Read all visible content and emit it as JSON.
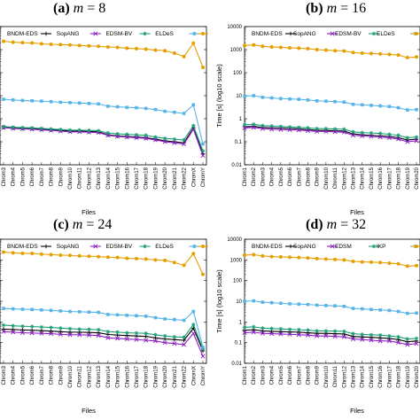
{
  "figure": {
    "ylabel": "Time [s] (log10 scale)",
    "xlabel": "Files"
  },
  "chart_data": [
    {
      "type": "line",
      "panel": "(a)",
      "title_math": "m = 8",
      "title_var": "m",
      "title_val": "= 8",
      "xlabel": "Files",
      "ylabel": "",
      "ylim": [
        0.01,
        10000
      ],
      "yscale": "log",
      "categories": [
        "Chrom3",
        "Chrom4",
        "Chrom5",
        "Chrom6",
        "Chrom7",
        "Chrom8",
        "Chrom9",
        "Chrom10",
        "Chrom11",
        "Chrom12",
        "Chrom13",
        "Chrom14",
        "Chrom15",
        "Chrom16",
        "Chrom17",
        "Chrom18",
        "Chrom19",
        "Chrom20",
        "Chrom21",
        "Chrom22",
        "ChromX",
        "ChromY"
      ],
      "series": [
        {
          "name": "BNDM-EDS",
          "color": "#000000",
          "marker": "plus",
          "values": [
            0.42,
            0.4,
            0.38,
            0.37,
            0.35,
            0.33,
            0.31,
            0.29,
            0.29,
            0.28,
            0.27,
            0.2,
            0.18,
            0.17,
            0.16,
            0.15,
            0.13,
            0.11,
            0.1,
            0.09,
            0.4,
            0.03
          ]
        },
        {
          "name": "SopANG",
          "color": "#8b1fc4",
          "marker": "x",
          "values": [
            0.41,
            0.38,
            0.36,
            0.35,
            0.33,
            0.31,
            0.29,
            0.27,
            0.27,
            0.26,
            0.25,
            0.19,
            0.17,
            0.16,
            0.15,
            0.14,
            0.12,
            0.1,
            0.09,
            0.08,
            0.35,
            0.025
          ]
        },
        {
          "name": "EDSM-BV",
          "color": "#1a9e77",
          "marker": "star",
          "values": [
            0.46,
            0.43,
            0.41,
            0.4,
            0.38,
            0.36,
            0.34,
            0.32,
            0.32,
            0.31,
            0.3,
            0.24,
            0.22,
            0.21,
            0.2,
            0.19,
            0.16,
            0.14,
            0.13,
            0.12,
            0.5,
            0.04
          ]
        },
        {
          "name": "ELDeS",
          "color": "#56b4e9",
          "marker": "square",
          "values": [
            7.0,
            6.5,
            6.2,
            6.0,
            5.8,
            5.5,
            5.2,
            5.0,
            4.8,
            4.6,
            4.4,
            3.5,
            3.3,
            3.1,
            3.0,
            2.8,
            2.5,
            2.1,
            1.9,
            1.7,
            4.0,
            0.08
          ]
        },
        {
          "name": "",
          "color": "#e69f00",
          "marker": "circle",
          "values": [
            2300,
            2100,
            2000,
            1950,
            1800,
            1700,
            1650,
            1600,
            1500,
            1450,
            1400,
            1300,
            1250,
            1150,
            1100,
            1050,
            950,
            900,
            700,
            500,
            1900,
            170
          ]
        }
      ]
    },
    {
      "type": "line",
      "panel": "(b)",
      "title_math": "m = 16",
      "title_var": "m",
      "title_val": "= 16",
      "xlabel": "Files",
      "ylabel": "Time [s] (log10 scale)",
      "ylim": [
        0.01,
        10000
      ],
      "yscale": "log",
      "categories": [
        "Chrom1",
        "Chrom2",
        "Chrom3",
        "Chrom4",
        "Chrom5",
        "Chrom6",
        "Chrom7",
        "Chrom8",
        "Chrom9",
        "Chrom10",
        "Chrom11",
        "Chrom12",
        "Chrom13",
        "Chrom14",
        "Chrom15",
        "Chrom16",
        "Chrom17",
        "Chrom18",
        "Chrom19",
        "Chrom20"
      ],
      "series": [
        {
          "name": "BNDM-EDS",
          "color": "#000000",
          "marker": "plus",
          "values": [
            0.45,
            0.47,
            0.42,
            0.4,
            0.39,
            0.38,
            0.36,
            0.34,
            0.31,
            0.31,
            0.3,
            0.29,
            0.22,
            0.2,
            0.19,
            0.18,
            0.17,
            0.15,
            0.12,
            0.13
          ]
        },
        {
          "name": "SopANG",
          "color": "#8b1fc4",
          "marker": "x",
          "values": [
            0.4,
            0.42,
            0.37,
            0.35,
            0.34,
            0.33,
            0.32,
            0.3,
            0.28,
            0.28,
            0.27,
            0.26,
            0.19,
            0.18,
            0.17,
            0.16,
            0.15,
            0.13,
            0.1,
            0.11
          ]
        },
        {
          "name": "EDSM-BV",
          "color": "#1a9e77",
          "marker": "star",
          "values": [
            0.55,
            0.58,
            0.5,
            0.48,
            0.46,
            0.44,
            0.42,
            0.4,
            0.37,
            0.37,
            0.36,
            0.35,
            0.27,
            0.25,
            0.24,
            0.23,
            0.21,
            0.19,
            0.15,
            0.16
          ]
        },
        {
          "name": "ELDeS",
          "color": "#56b4e9",
          "marker": "square",
          "values": [
            9.5,
            10.0,
            8.5,
            8.0,
            7.5,
            7.2,
            7.0,
            6.5,
            6.0,
            5.8,
            5.5,
            5.3,
            4.2,
            4.0,
            3.8,
            3.6,
            3.4,
            3.0,
            2.4,
            2.5
          ]
        },
        {
          "name": "",
          "color": "#e69f00",
          "marker": "circle",
          "values": [
            1500,
            1600,
            1400,
            1300,
            1250,
            1200,
            1150,
            1100,
            1000,
            950,
            900,
            880,
            750,
            700,
            680,
            650,
            620,
            580,
            450,
            480
          ]
        }
      ]
    },
    {
      "type": "line",
      "panel": "(c)",
      "title_math": "m = 24",
      "title_var": "m",
      "title_val": "= 24",
      "xlabel": "Files",
      "ylabel": "",
      "ylim": [
        0.01,
        10000
      ],
      "yscale": "log",
      "categories": [
        "Chrom3",
        "Chrom4",
        "Chrom5",
        "Chrom6",
        "Chrom7",
        "Chrom8",
        "Chrom9",
        "Chrom10",
        "Chrom11",
        "Chrom12",
        "Chrom13",
        "Chrom14",
        "Chrom15",
        "Chrom16",
        "Chrom17",
        "Chrom18",
        "Chrom19",
        "Chrom20",
        "Chrom21",
        "Chrom22",
        "ChromX",
        "ChromY"
      ],
      "series": [
        {
          "name": "BNDM-EDS",
          "color": "#000000",
          "marker": "plus",
          "values": [
            0.45,
            0.43,
            0.41,
            0.4,
            0.38,
            0.36,
            0.34,
            0.32,
            0.32,
            0.31,
            0.3,
            0.25,
            0.23,
            0.22,
            0.21,
            0.2,
            0.17,
            0.15,
            0.14,
            0.13,
            0.5,
            0.04
          ]
        },
        {
          "name": "SopANG",
          "color": "#8b1fc4",
          "marker": "x",
          "values": [
            0.34,
            0.32,
            0.3,
            0.29,
            0.28,
            0.27,
            0.25,
            0.24,
            0.24,
            0.23,
            0.22,
            0.17,
            0.16,
            0.15,
            0.14,
            0.13,
            0.12,
            0.1,
            0.09,
            0.08,
            0.28,
            0.022
          ]
        },
        {
          "name": "EDSM-BV",
          "color": "#1a9e77",
          "marker": "star",
          "values": [
            0.7,
            0.65,
            0.62,
            0.6,
            0.57,
            0.54,
            0.5,
            0.47,
            0.45,
            0.44,
            0.42,
            0.34,
            0.32,
            0.3,
            0.29,
            0.28,
            0.24,
            0.21,
            0.19,
            0.18,
            0.75,
            0.05
          ]
        },
        {
          "name": "ELDeS",
          "color": "#56b4e9",
          "marker": "square",
          "values": [
            4.5,
            4.3,
            4.1,
            4.0,
            3.8,
            3.6,
            3.4,
            3.2,
            3.1,
            3.0,
            2.9,
            2.3,
            2.2,
            2.1,
            2.0,
            1.9,
            1.6,
            1.4,
            1.3,
            1.2,
            3.2,
            0.06
          ]
        },
        {
          "name": "",
          "color": "#e69f00",
          "marker": "circle",
          "values": [
            2400,
            2200,
            2100,
            2050,
            1900,
            1800,
            1700,
            1650,
            1550,
            1500,
            1450,
            1350,
            1300,
            1200,
            1150,
            1100,
            1000,
            950,
            750,
            550,
            2000,
            200
          ]
        }
      ]
    },
    {
      "type": "line",
      "panel": "(d)",
      "title_math": "m = 32",
      "title_var": "m",
      "title_val": "= 32",
      "xlabel": "Files",
      "ylabel": "Time [s] (log10 scale)",
      "ylim": [
        0.01,
        10000
      ],
      "yscale": "log",
      "categories": [
        "Chrom1",
        "Chrom2",
        "Chrom3",
        "Chrom4",
        "Chrom5",
        "Chrom6",
        "Chrom7",
        "Chrom8",
        "Chrom9",
        "Chrom10",
        "Chrom11",
        "Chrom12",
        "Chrom13",
        "Chrom14",
        "Chrom15",
        "Chrom16",
        "Chrom17",
        "Chrom18",
        "Chrom19",
        "Chrom20"
      ],
      "series": [
        {
          "name": "BNDM-EDS",
          "color": "#000000",
          "marker": "plus",
          "values": [
            0.4,
            0.42,
            0.37,
            0.35,
            0.34,
            0.33,
            0.32,
            0.3,
            0.28,
            0.28,
            0.27,
            0.26,
            0.2,
            0.19,
            0.18,
            0.17,
            0.16,
            0.14,
            0.11,
            0.12
          ]
        },
        {
          "name": "SopANG",
          "color": "#8b1fc4",
          "marker": "x",
          "values": [
            0.3,
            0.32,
            0.28,
            0.27,
            0.26,
            0.25,
            0.24,
            0.23,
            0.21,
            0.21,
            0.2,
            0.19,
            0.15,
            0.14,
            0.13,
            0.12,
            0.12,
            0.1,
            0.08,
            0.09
          ]
        },
        {
          "name": "EDSM",
          "color": "#1a9e77",
          "marker": "star",
          "values": [
            0.55,
            0.58,
            0.5,
            0.48,
            0.46,
            0.44,
            0.42,
            0.4,
            0.37,
            0.37,
            0.36,
            0.35,
            0.27,
            0.25,
            0.24,
            0.23,
            0.21,
            0.19,
            0.15,
            0.16
          ]
        },
        {
          "name": "IKP",
          "color": "#56b4e9",
          "marker": "square",
          "values": [
            10.0,
            10.5,
            9.0,
            8.5,
            8.0,
            7.5,
            7.3,
            7.0,
            6.5,
            6.2,
            6.0,
            5.7,
            4.5,
            4.3,
            4.0,
            3.8,
            3.6,
            3.2,
            2.6,
            2.7
          ]
        },
        {
          "name": "",
          "color": "#e69f00",
          "marker": "circle",
          "values": [
            1700,
            1800,
            1550,
            1450,
            1400,
            1350,
            1300,
            1250,
            1150,
            1100,
            1050,
            1000,
            850,
            800,
            780,
            750,
            700,
            650,
            500,
            530
          ]
        }
      ]
    }
  ]
}
